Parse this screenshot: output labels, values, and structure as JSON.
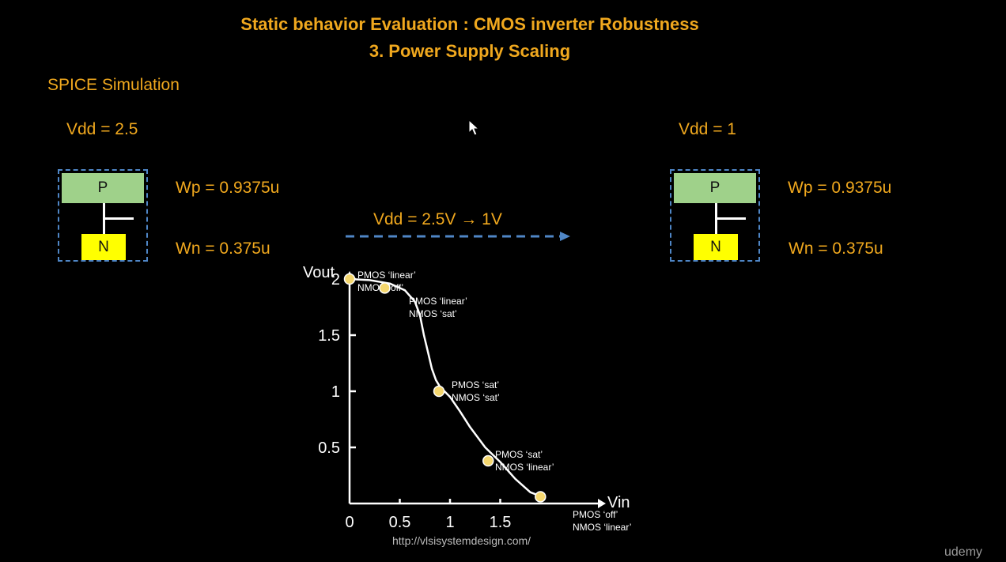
{
  "slide": {
    "title_line1": "Static behavior Evaluation : CMOS inverter Robustness",
    "title_line2": "3. Power Supply Scaling",
    "section": "SPICE Simulation",
    "left": {
      "vdd": "Vdd = 2.5",
      "p": "P",
      "n": "N",
      "wp": "Wp = 0.9375u",
      "wn": "Wn = 0.375u"
    },
    "right": {
      "vdd": "Vdd = 1",
      "p": "P",
      "n": "N",
      "wp": "Wp = 0.9375u",
      "wn": "Wn = 0.375u"
    },
    "arrow_label": "Vdd = 2.5V → 1V",
    "url": "http://vlsisystemdesign.com/",
    "watermark": "udemy",
    "colors": {
      "accent": "#f0a81e",
      "dashed": "#4f86c6",
      "pmos": "#9fd18a",
      "nmos": "#ffff00",
      "marker": "#f5d76e"
    }
  },
  "chart_data": {
    "type": "line",
    "xlabel": "Vin",
    "ylabel": "Vout",
    "x_ticks": [
      "0",
      "0.5",
      "1",
      "1.5"
    ],
    "y_ticks": [
      "0.5",
      "1",
      "1.5",
      "2"
    ],
    "xlim": [
      0,
      2
    ],
    "ylim": [
      0,
      2.2
    ],
    "series": [
      {
        "x": [
          0,
          0.2,
          0.4,
          0.55,
          0.65,
          0.7,
          0.74,
          0.78,
          0.82,
          0.86,
          0.9,
          1.0,
          1.1,
          1.2,
          1.35,
          1.5,
          1.65,
          1.8,
          1.95
        ],
        "y": [
          2.0,
          1.99,
          1.96,
          1.9,
          1.8,
          1.68,
          1.5,
          1.35,
          1.2,
          1.1,
          1.04,
          0.95,
          0.82,
          0.68,
          0.5,
          0.37,
          0.22,
          0.1,
          0.05
        ]
      }
    ],
    "markers": [
      {
        "x": 0,
        "y": 2.0,
        "label1": "PMOS ‘linear’",
        "label2": "NMOS ‘off’"
      },
      {
        "x": 0.35,
        "y": 1.92,
        "label1": "PMOS ‘linear’",
        "label2": "NMOS ‘sat’"
      },
      {
        "x": 0.89,
        "y": 1.0,
        "label1": "PMOS ‘sat’",
        "label2": "NMOS ‘sat’"
      },
      {
        "x": 1.38,
        "y": 0.38,
        "label1": "PMOS ‘sat’",
        "label2": "NMOS ‘linear’"
      },
      {
        "x": 1.9,
        "y": 0.06,
        "label1": "PMOS ‘off’",
        "label2": "NMOS ‘linear’"
      }
    ]
  }
}
